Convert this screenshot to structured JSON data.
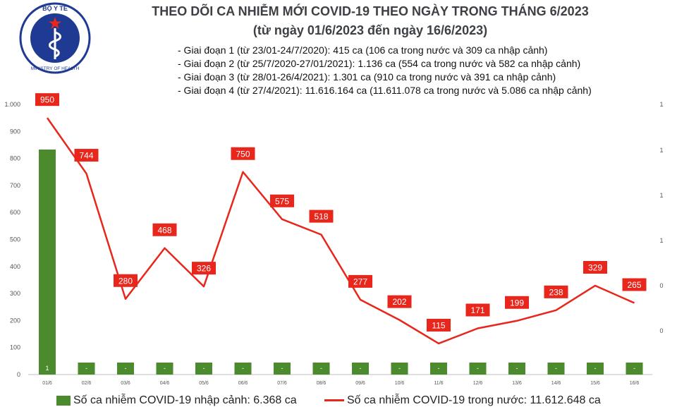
{
  "header": {
    "title": "THEO DÕI CA NHIỄM MỚI COVID-19 THEO NGÀY TRONG THÁNG 6/2023",
    "subtitle": "(từ ngày 01/6/2023 đến ngày 16/6/2023)",
    "notes": [
      "- Giai đoạn 1 (từ 23/01-24/7/2020): 415 ca (106 ca trong nước và 309 ca nhập cảnh)",
      "- Giai đoạn 2 (từ 25/7/2020-27/01/2021): 1.136 ca (554 ca trong nước và 582 ca nhập cảnh)",
      "- Giai đoạn 3 (từ 28/01-26/4/2021): 1.301 ca (910 ca trong nước và 391 ca nhập cảnh)",
      "- Giai đoạn 4 (từ 27/4/2021): 11.616.164 ca (11.611.078 ca trong nước và 5.086 ca nhập cảnh)"
    ]
  },
  "logo": {
    "top_text": "BỘ Y TẾ",
    "bottom_text": "MINISTRY OF HEALTH"
  },
  "colors": {
    "bar": "#4b8a2d",
    "line": "#e8261b",
    "title": "#3d4044",
    "logo": "#1f3a93"
  },
  "legend": {
    "bar_label": "Số ca nhiễm COVID-19 nhập cảnh: 6.368 ca",
    "line_label": "Số ca nhiễm COVID-19 trong nước: 11.612.648 ca"
  },
  "chart_data": {
    "type": "bar+line",
    "categories": [
      "01/6",
      "02/6",
      "03/6",
      "04/6",
      "05/6",
      "06/6",
      "07/6",
      "08/6",
      "09/6",
      "10/6",
      "11/6",
      "12/6",
      "13/6",
      "14/6",
      "15/6",
      "16/6"
    ],
    "series": [
      {
        "name": "Số ca nhiễm COVID-19 nhập cảnh: 6.368 ca",
        "type": "bar",
        "axis": "right",
        "values": [
          1,
          0,
          0,
          0,
          0,
          0,
          0,
          0,
          0,
          0,
          0,
          0,
          0,
          0,
          0,
          0
        ],
        "labels": [
          "1",
          "-",
          "-",
          "-",
          "-",
          "-",
          "-",
          "-",
          "-",
          "-",
          "-",
          "-",
          "-",
          "-",
          "-",
          "-"
        ]
      },
      {
        "name": "Số ca nhiễm COVID-19 trong nước: 11.612.648 ca",
        "type": "line",
        "axis": "left",
        "values": [
          950,
          744,
          280,
          468,
          326,
          750,
          575,
          518,
          277,
          202,
          115,
          171,
          199,
          238,
          329,
          265
        ]
      }
    ],
    "left_axis": {
      "ylim": [
        0,
        1000
      ],
      "ticks": [
        0,
        100,
        200,
        300,
        400,
        500,
        600,
        700,
        800,
        900,
        1000
      ],
      "tick_labels": [
        "0",
        "100",
        "200",
        "300",
        "400",
        "500",
        "600",
        "700",
        "800",
        "900",
        "1.000"
      ]
    },
    "right_axis": {
      "tick_labels": [
        "1",
        "1",
        "1",
        "1",
        "0",
        "0"
      ]
    },
    "grid": false,
    "legend_position": "bottom"
  }
}
